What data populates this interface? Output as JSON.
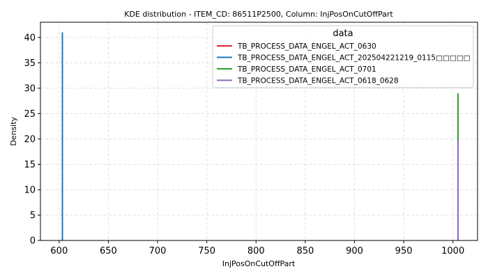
{
  "chart_data": {
    "type": "line",
    "title": "KDE distribution - ITEM_CD: 86511P2500, Column: InjPosOnCutOffPart",
    "xlabel": "InjPosOnCutOffPart",
    "ylabel": "Density",
    "xlim": [
      581,
      1025
    ],
    "ylim": [
      0,
      43
    ],
    "xticks": [
      600,
      650,
      700,
      750,
      800,
      850,
      900,
      950,
      1000
    ],
    "yticks": [
      0,
      5,
      10,
      15,
      20,
      25,
      30,
      35,
      40
    ],
    "grid": true,
    "legend": {
      "title": "data",
      "placement": "top-right"
    },
    "series": [
      {
        "name": "TB_PROCESS_DATA_ENGEL_ACT_0630",
        "color": "#d62728",
        "x": [
          1005.2,
          1005.2
        ],
        "y": [
          0,
          20
        ]
      },
      {
        "name": "TB_PROCESS_DATA_ENGEL_ACT_202504221219_0115□□□□□",
        "color": "#1f77b4",
        "x": [
          603.3,
          603.3
        ],
        "y": [
          0,
          41
        ]
      },
      {
        "name": "TB_PROCESS_DATA_ENGEL_ACT_0701",
        "color": "#2ca02c",
        "x": [
          1005.2,
          1005.2
        ],
        "y": [
          0,
          29
        ]
      },
      {
        "name": "TB_PROCESS_DATA_ENGEL_ACT_0618_0628",
        "color": "#9467bd",
        "x": [
          1005.2,
          1005.2
        ],
        "y": [
          0,
          19.7
        ]
      }
    ]
  }
}
